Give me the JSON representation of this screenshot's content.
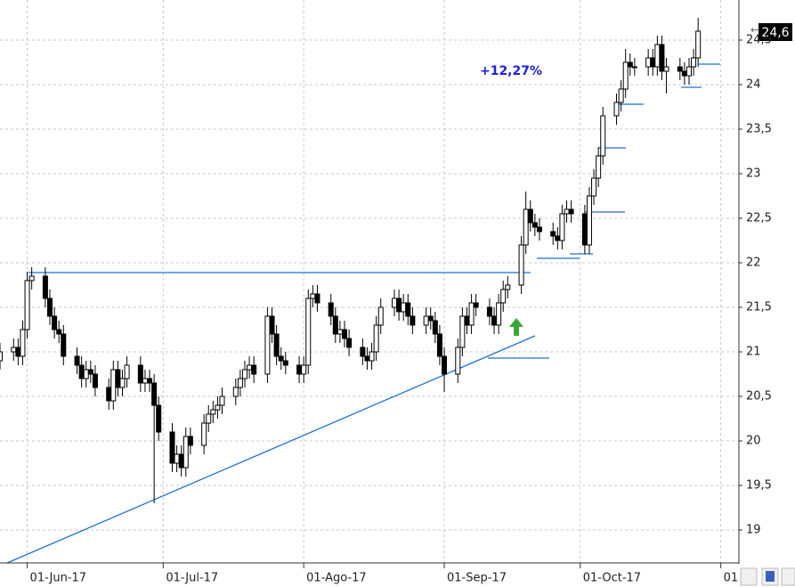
{
  "chart_data": {
    "type": "candlestick",
    "x": [
      "2017-05-26",
      "2017-05-29",
      "2017-05-30",
      "2017-05-31",
      "2017-06-01",
      "2017-06-02",
      "2017-06-05",
      "2017-06-06",
      "2017-06-07",
      "2017-06-08",
      "2017-06-09",
      "2017-06-12",
      "2017-06-13",
      "2017-06-14",
      "2017-06-15",
      "2017-06-16",
      "2017-06-19",
      "2017-06-20",
      "2017-06-21",
      "2017-06-22",
      "2017-06-23",
      "2017-06-26",
      "2017-06-27",
      "2017-06-28",
      "2017-06-29",
      "2017-06-30",
      "2017-07-03",
      "2017-07-04",
      "2017-07-05",
      "2017-07-06",
      "2017-07-07",
      "2017-07-10",
      "2017-07-11",
      "2017-07-12",
      "2017-07-13",
      "2017-07-14",
      "2017-07-17",
      "2017-07-18",
      "2017-07-19",
      "2017-07-20",
      "2017-07-21",
      "2017-07-24",
      "2017-07-25",
      "2017-07-26",
      "2017-07-27",
      "2017-07-28",
      "2017-07-31",
      "2017-08-01",
      "2017-08-02",
      "2017-08-03",
      "2017-08-04",
      "2017-08-07",
      "2017-08-08",
      "2017-08-09",
      "2017-08-10",
      "2017-08-11",
      "2017-08-14",
      "2017-08-15",
      "2017-08-16",
      "2017-08-17",
      "2017-08-18",
      "2017-08-21",
      "2017-08-22",
      "2017-08-23",
      "2017-08-24",
      "2017-08-25",
      "2017-08-28",
      "2017-08-29",
      "2017-08-30",
      "2017-08-31",
      "2017-09-01",
      "2017-09-04",
      "2017-09-05",
      "2017-09-06",
      "2017-09-07",
      "2017-09-08",
      "2017-09-11",
      "2017-09-12",
      "2017-09-13",
      "2017-09-14",
      "2017-09-15",
      "2017-09-18",
      "2017-09-19",
      "2017-09-20",
      "2017-09-21",
      "2017-09-22",
      "2017-09-25",
      "2017-09-26",
      "2017-09-27",
      "2017-09-28",
      "2017-09-29",
      "2017-10-02",
      "2017-10-03",
      "2017-10-04",
      "2017-10-05",
      "2017-10-06",
      "2017-10-09",
      "2017-10-10",
      "2017-10-11",
      "2017-10-12",
      "2017-10-13",
      "2017-10-16",
      "2017-10-17",
      "2017-10-18",
      "2017-10-19",
      "2017-10-20",
      "2017-10-23",
      "2017-10-24",
      "2017-10-25",
      "2017-10-26",
      "2017-10-27"
    ],
    "open": [
      20.9,
      21.0,
      21.05,
      20.95,
      21.25,
      21.8,
      21.85,
      21.6,
      21.4,
      21.25,
      21.2,
      20.95,
      20.85,
      20.7,
      20.8,
      20.75,
      20.6,
      20.45,
      20.8,
      20.6,
      20.7,
      20.85,
      20.65,
      20.7,
      20.65,
      20.4,
      20.1,
      19.75,
      19.85,
      19.7,
      20.05,
      19.95,
      20.2,
      20.3,
      20.35,
      20.4,
      20.5,
      20.6,
      20.7,
      20.8,
      20.85,
      20.75,
      21.4,
      21.2,
      20.95,
      20.9,
      20.85,
      20.75,
      20.85,
      21.6,
      21.65,
      21.55,
      21.4,
      21.2,
      21.25,
      21.15,
      21.05,
      20.95,
      20.9,
      21.0,
      21.3,
      21.5,
      21.6,
      21.45,
      21.55,
      21.4,
      21.3,
      21.4,
      21.35,
      21.2,
      20.95,
      20.75,
      21.05,
      21.4,
      21.3,
      21.55,
      21.5,
      21.4,
      21.3,
      21.55,
      21.7,
      21.75,
      22.2,
      22.6,
      22.45,
      22.4,
      22.35,
      22.3,
      22.25,
      22.55,
      22.6,
      22.55,
      22.2,
      22.75,
      22.95,
      23.2,
      23.65,
      23.8,
      23.95,
      24.25,
      24.2,
      24.2,
      24.3,
      24.2,
      24.45,
      24.15,
      24.2,
      24.15,
      24.1,
      24.2,
      24.3
    ],
    "high": [
      21.1,
      21.15,
      21.15,
      21.35,
      21.9,
      21.95,
      21.95,
      21.7,
      21.5,
      21.35,
      21.3,
      21.05,
      20.95,
      20.9,
      20.9,
      20.85,
      20.7,
      20.9,
      20.9,
      20.8,
      20.95,
      20.95,
      20.8,
      20.8,
      20.75,
      20.5,
      20.2,
      19.95,
      19.95,
      20.15,
      20.15,
      20.3,
      20.4,
      20.45,
      20.5,
      20.6,
      20.7,
      20.8,
      20.9,
      20.95,
      20.95,
      21.5,
      21.5,
      21.3,
      21.05,
      21.0,
      20.95,
      20.95,
      21.7,
      21.75,
      21.75,
      21.65,
      21.5,
      21.35,
      21.35,
      21.25,
      21.15,
      21.05,
      21.1,
      21.4,
      21.6,
      21.7,
      21.7,
      21.65,
      21.65,
      21.5,
      21.5,
      21.5,
      21.45,
      21.3,
      21.05,
      21.15,
      21.5,
      21.5,
      21.65,
      21.65,
      21.6,
      21.5,
      21.65,
      21.8,
      21.85,
      22.3,
      22.8,
      22.7,
      22.55,
      22.5,
      22.45,
      22.4,
      22.65,
      22.7,
      22.7,
      22.65,
      22.85,
      23.05,
      23.3,
      23.75,
      23.9,
      24.05,
      24.4,
      24.35,
      24.3,
      24.4,
      24.4,
      24.55,
      24.55,
      24.3,
      24.3,
      24.25,
      24.3,
      24.4,
      24.75
    ],
    "low": [
      20.8,
      20.9,
      20.85,
      20.85,
      21.15,
      21.7,
      21.5,
      21.3,
      21.15,
      21.1,
      20.85,
      20.75,
      20.6,
      20.6,
      20.65,
      20.5,
      20.35,
      20.35,
      20.5,
      20.5,
      20.6,
      20.55,
      20.55,
      20.55,
      19.3,
      20.0,
      19.65,
      19.65,
      19.6,
      19.6,
      19.85,
      19.85,
      20.1,
      20.2,
      20.25,
      20.3,
      20.4,
      20.5,
      20.6,
      20.7,
      20.65,
      20.65,
      21.1,
      20.85,
      20.8,
      20.75,
      20.65,
      20.65,
      20.75,
      21.5,
      21.45,
      21.3,
      21.1,
      21.1,
      21.05,
      20.95,
      20.85,
      20.8,
      20.8,
      20.9,
      21.2,
      21.4,
      21.35,
      21.35,
      21.3,
      21.2,
      21.2,
      21.25,
      21.1,
      20.85,
      20.55,
      20.65,
      20.95,
      21.2,
      21.2,
      21.4,
      21.3,
      21.2,
      21.2,
      21.45,
      21.6,
      21.65,
      22.1,
      22.35,
      22.3,
      22.25,
      22.2,
      22.15,
      22.15,
      22.45,
      22.45,
      22.1,
      22.1,
      22.65,
      22.85,
      23.1,
      23.55,
      23.7,
      23.85,
      24.1,
      24.1,
      24.1,
      24.1,
      24.1,
      24.05,
      23.9,
      24.05,
      24.0,
      24.0,
      24.1,
      24.2
    ],
    "close": [
      21.0,
      21.05,
      20.95,
      21.25,
      21.8,
      21.85,
      21.6,
      21.4,
      21.25,
      21.2,
      20.95,
      20.85,
      20.7,
      20.8,
      20.75,
      20.6,
      20.45,
      20.8,
      20.6,
      20.7,
      20.85,
      20.65,
      20.7,
      20.65,
      20.4,
      20.1,
      19.75,
      19.85,
      19.7,
      20.05,
      19.95,
      20.2,
      20.3,
      20.35,
      20.4,
      20.5,
      20.6,
      20.7,
      20.8,
      20.85,
      20.75,
      21.4,
      21.2,
      20.95,
      20.9,
      20.85,
      20.75,
      20.85,
      21.6,
      21.65,
      21.55,
      21.4,
      21.2,
      21.25,
      21.15,
      21.05,
      20.95,
      20.9,
      21.0,
      21.3,
      21.5,
      21.6,
      21.45,
      21.55,
      21.4,
      21.3,
      21.4,
      21.35,
      21.2,
      20.95,
      20.75,
      21.05,
      21.4,
      21.3,
      21.55,
      21.5,
      21.4,
      21.3,
      21.55,
      21.7,
      21.75,
      22.2,
      22.6,
      22.45,
      22.4,
      22.35,
      22.3,
      22.25,
      22.55,
      22.6,
      22.55,
      22.2,
      22.75,
      22.95,
      23.2,
      23.65,
      23.8,
      23.95,
      24.25,
      24.2,
      24.2,
      24.3,
      24.2,
      24.45,
      24.15,
      24.2,
      24.15,
      24.1,
      24.2,
      24.3,
      24.6
    ],
    "xlim": [
      "2017-05-26",
      "2017-11-05"
    ],
    "xticks": [
      {
        "value": "2017-06-01",
        "label": "01-Jun-17"
      },
      {
        "value": "2017-07-01",
        "label": "01-Jul-17"
      },
      {
        "value": "2017-08-01",
        "label": "01-Ago-17"
      },
      {
        "value": "2017-09-01",
        "label": "01-Sep-17"
      },
      {
        "value": "2017-10-01",
        "label": "01-Oct-17"
      },
      {
        "value": "2017-11-01",
        "label": "01"
      }
    ],
    "ylim": [
      18.63,
      24.95
    ],
    "yticks": [
      {
        "value": 19,
        "label": "19"
      },
      {
        "value": 19.5,
        "label": "19,5"
      },
      {
        "value": 20,
        "label": "20"
      },
      {
        "value": 20.5,
        "label": "20,5"
      },
      {
        "value": 21,
        "label": "21"
      },
      {
        "value": 21.5,
        "label": "21,5"
      },
      {
        "value": 22,
        "label": "22"
      },
      {
        "value": 22.5,
        "label": "22,5"
      },
      {
        "value": 23,
        "label": "23"
      },
      {
        "value": 23.5,
        "label": "23,5"
      },
      {
        "value": 24,
        "label": "24"
      },
      {
        "value": 24.5,
        "label": "24,5"
      }
    ],
    "grid": true,
    "up_color": "#ffffff",
    "down_color": "#000000",
    "annotation": "+12,27%",
    "last_price_label": "24,6"
  }
}
